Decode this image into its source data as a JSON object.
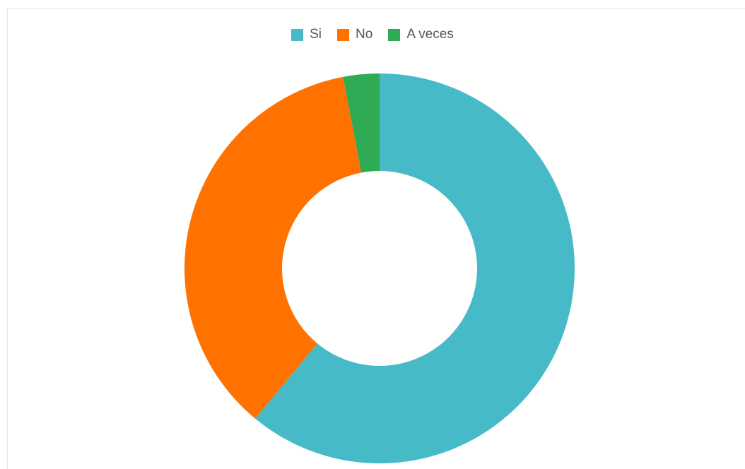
{
  "chart_data": {
    "type": "pie",
    "variant": "donut",
    "title": "",
    "legend_position": "top",
    "categories": [
      "Si",
      "No",
      "A veces"
    ],
    "values": [
      61,
      36,
      3
    ],
    "unit": "%",
    "colors": [
      "#46BAC7",
      "#FF7200",
      "#2FAA55"
    ]
  }
}
